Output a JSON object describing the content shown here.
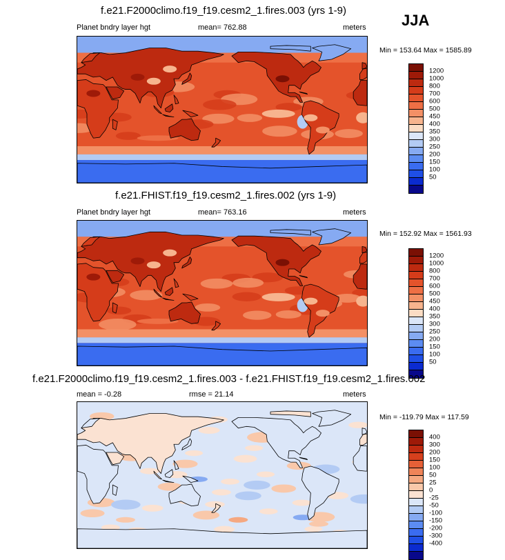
{
  "season": "JJA",
  "palette_fields": [
    "#08088b",
    "#0b2bd0",
    "#1f4fe6",
    "#3a6cf0",
    "#5c8cf2",
    "#86aaf2",
    "#b3cbf4",
    "#dbe6f8",
    "#fbdcc4",
    "#f7b48e",
    "#f39066",
    "#ee6f45",
    "#e4532b",
    "#d53c1a",
    "#bd2a10",
    "#9e1a08",
    "#7a1004"
  ],
  "palette_diff": [
    "#08088b",
    "#0b2bd0",
    "#1f4fe6",
    "#3a6cf0",
    "#5c8cf2",
    "#86aaf2",
    "#b3cbf4",
    "#dbe6f8",
    "#fbe2d2",
    "#f9c8aa",
    "#f5a881",
    "#ef8459",
    "#e66037",
    "#d6401d",
    "#be2a10",
    "#9e1a08",
    "#7a1004"
  ],
  "chart_data": [
    {
      "type": "heatmap",
      "title": "f.e21.F2000climo.f19_f19.cesm2_1.fires.003 (yrs 1-9)",
      "variable": "Planet bndry layer hgt",
      "mean_label": "mean= 762.88",
      "units": "meters",
      "minmax_label": "Min = 153.64 Max = 1585.89",
      "min": 153.64,
      "max": 1585.89,
      "mean": 762.88,
      "colorbar_levels": [
        "1200",
        "1000",
        "800",
        "700",
        "600",
        "500",
        "450",
        "400",
        "350",
        "300",
        "250",
        "200",
        "150",
        "100",
        "50"
      ]
    },
    {
      "type": "heatmap",
      "title": "f.e21.FHIST.f19_f19.cesm2_1.fires.002 (yrs 1-9)",
      "variable": "Planet bndry layer hgt",
      "mean_label": "mean= 763.16",
      "units": "meters",
      "minmax_label": "Min = 152.92 Max = 1561.93",
      "min": 152.92,
      "max": 1561.93,
      "mean": 763.16,
      "colorbar_levels": [
        "1200",
        "1000",
        "800",
        "700",
        "600",
        "500",
        "450",
        "400",
        "350",
        "300",
        "250",
        "200",
        "150",
        "100",
        "50"
      ]
    },
    {
      "type": "heatmap",
      "title": "f.e21.F2000climo.f19_f19.cesm2_1.fires.003 - f.e21.FHIST.f19_f19.cesm2_1.fires.002",
      "mean_label": "mean =  -0.28",
      "rmse_label": "rmse =  21.14",
      "units": "meters",
      "minmax_label": "Min = -119.79 Max = 117.59",
      "min": -119.79,
      "max": 117.59,
      "mean": -0.28,
      "rmse": 21.14,
      "colorbar_levels": [
        "400",
        "300",
        "200",
        "150",
        "100",
        "50",
        "25",
        "0",
        "-25",
        "-50",
        "-100",
        "-150",
        "-200",
        "-300",
        "-400"
      ]
    }
  ]
}
